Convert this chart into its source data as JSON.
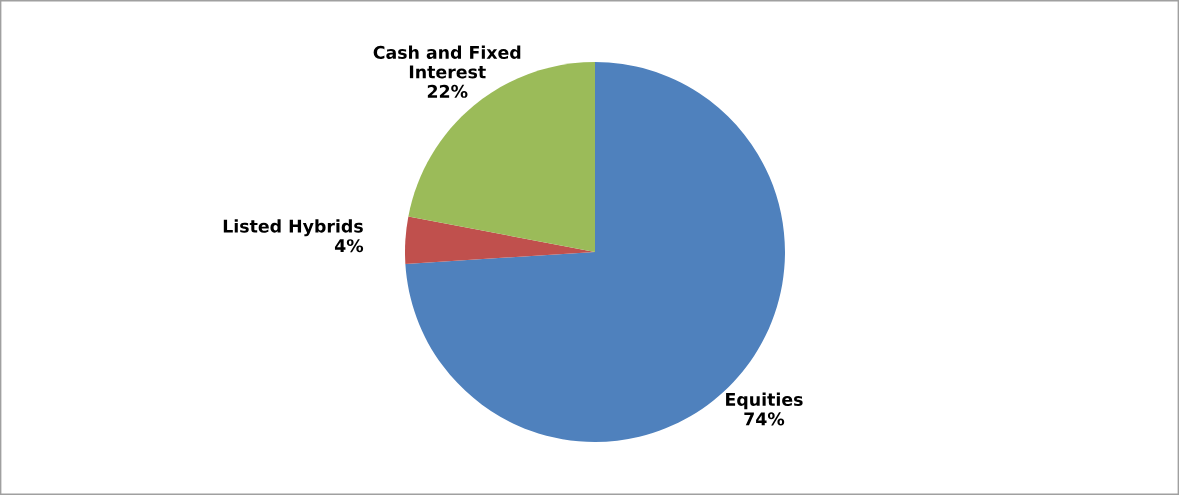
{
  "chart_data": {
    "type": "pie",
    "categories": [
      "Equities",
      "Listed Hybrids",
      "Cash and Fixed\nInterest"
    ],
    "values": [
      74,
      4,
      22
    ],
    "colors": [
      "#4f81bd",
      "#c0504d",
      "#9bbb59"
    ],
    "value_labels": [
      "74%",
      "4%",
      "22%"
    ],
    "legend": false
  }
}
